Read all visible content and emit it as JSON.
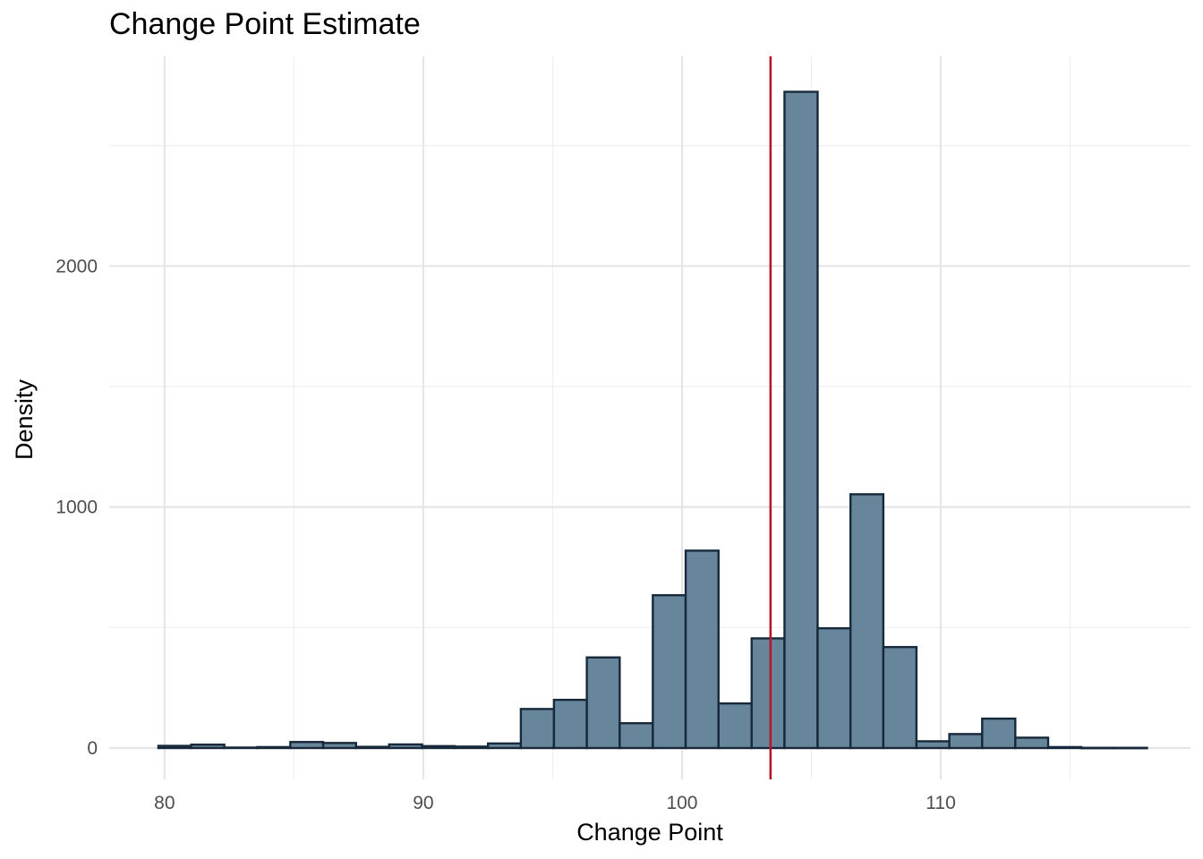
{
  "chart_data": {
    "type": "bar",
    "title": "Change Point Estimate",
    "xlabel": "Change Point",
    "ylabel": "Density",
    "xlim": [
      77.86,
      119.65
    ],
    "ylim": [
      -130,
      2870
    ],
    "grid": true,
    "x_ticks": [
      80,
      90,
      100,
      110
    ],
    "x_minor_ticks": [
      85,
      95,
      105,
      115
    ],
    "y_ticks": [
      0,
      1000,
      2000
    ],
    "y_minor_ticks": [
      500,
      1500,
      2500
    ],
    "bin_width": 1.2733,
    "bins": [
      {
        "x0": 79.76,
        "x1": 81.03,
        "value": 9
      },
      {
        "x0": 81.03,
        "x1": 82.31,
        "value": 14
      },
      {
        "x0": 82.31,
        "x1": 83.58,
        "value": 2
      },
      {
        "x0": 83.58,
        "x1": 84.86,
        "value": 4
      },
      {
        "x0": 84.86,
        "x1": 86.13,
        "value": 25
      },
      {
        "x0": 86.13,
        "x1": 87.4,
        "value": 21
      },
      {
        "x0": 87.4,
        "x1": 88.68,
        "value": 5
      },
      {
        "x0": 88.68,
        "x1": 89.95,
        "value": 15
      },
      {
        "x0": 89.95,
        "x1": 91.22,
        "value": 8
      },
      {
        "x0": 91.22,
        "x1": 92.5,
        "value": 6
      },
      {
        "x0": 92.5,
        "x1": 93.77,
        "value": 19
      },
      {
        "x0": 93.77,
        "x1": 95.05,
        "value": 162
      },
      {
        "x0": 95.05,
        "x1": 96.32,
        "value": 200
      },
      {
        "x0": 96.32,
        "x1": 97.59,
        "value": 376
      },
      {
        "x0": 97.59,
        "x1": 98.87,
        "value": 103
      },
      {
        "x0": 98.87,
        "x1": 100.14,
        "value": 634
      },
      {
        "x0": 100.14,
        "x1": 101.41,
        "value": 819
      },
      {
        "x0": 101.41,
        "x1": 102.69,
        "value": 185
      },
      {
        "x0": 102.69,
        "x1": 103.96,
        "value": 455
      },
      {
        "x0": 103.96,
        "x1": 105.24,
        "value": 2723
      },
      {
        "x0": 105.24,
        "x1": 106.51,
        "value": 497
      },
      {
        "x0": 106.51,
        "x1": 107.78,
        "value": 1053
      },
      {
        "x0": 107.78,
        "x1": 109.06,
        "value": 419
      },
      {
        "x0": 109.06,
        "x1": 110.33,
        "value": 28
      },
      {
        "x0": 110.33,
        "x1": 111.6,
        "value": 58
      },
      {
        "x0": 111.6,
        "x1": 112.88,
        "value": 122
      },
      {
        "x0": 112.88,
        "x1": 114.15,
        "value": 43
      },
      {
        "x0": 114.15,
        "x1": 115.43,
        "value": 4
      },
      {
        "x0": 115.43,
        "x1": 116.7,
        "value": 1
      },
      {
        "x0": 116.7,
        "x1": 117.97,
        "value": 1
      }
    ],
    "vline": {
      "x": 103.42,
      "color": "#b2182b"
    },
    "colors": {
      "bar_fill": "#67869c",
      "bar_stroke": "#17293a",
      "grid_major": "#e6e6e6",
      "grid_minor": "#efefef"
    }
  }
}
